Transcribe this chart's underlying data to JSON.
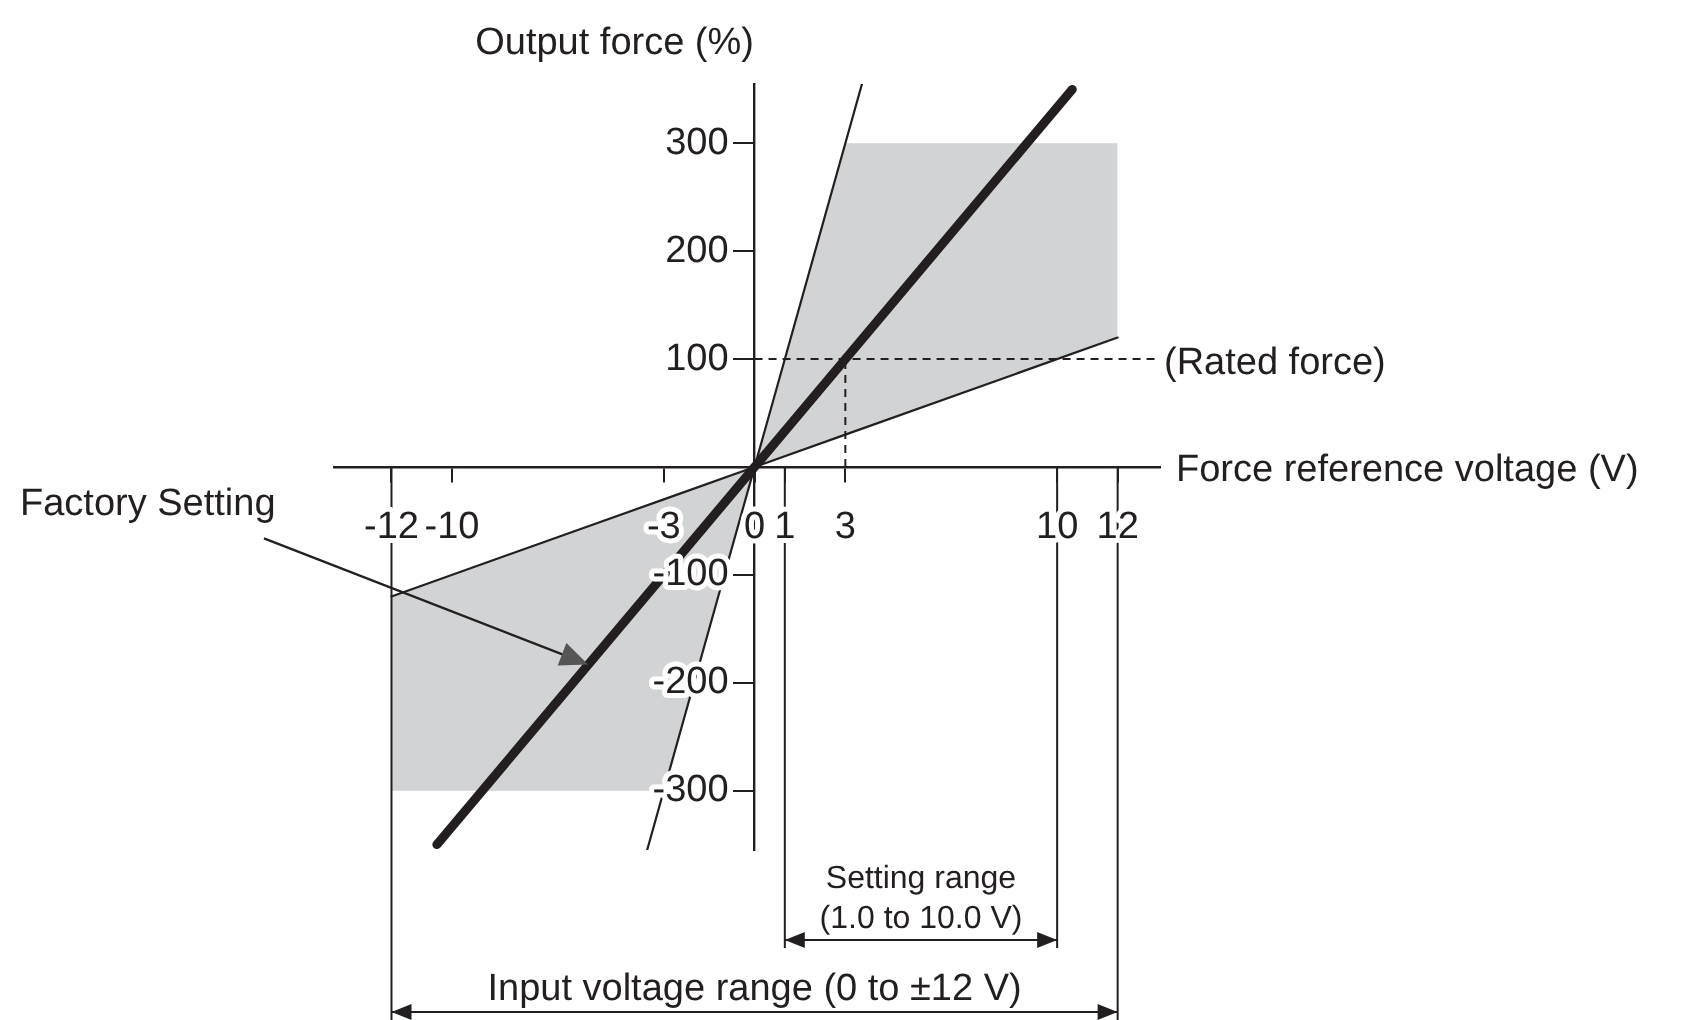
{
  "chart_data": {
    "type": "line",
    "xlabel": "Force reference voltage (V)",
    "ylabel": "Output force (%)",
    "xlim": [
      -13.9,
      13.4
    ],
    "ylim": [
      -355,
      355
    ],
    "xticks": [
      -12,
      -10,
      -3,
      0,
      1,
      3,
      10,
      12
    ],
    "yticks": [
      -300,
      -200,
      -100,
      100,
      200,
      300
    ],
    "grid": false,
    "legend": false,
    "marker": "none",
    "line_style": "solid",
    "series": [
      {
        "color": "#231f20",
        "x": [
          -12,
          -3,
          0,
          3,
          12
        ],
        "values": [
          -120,
          -30,
          0,
          30,
          120
        ],
        "lower": [
          -300,
          -300,
          0,
          30,
          120
        ],
        "upper": [
          -120,
          -30,
          0,
          300,
          300
        ]
      },
      {
        "color": "#231f20",
        "x": [
          -3.55,
          3.55
        ],
        "values": [
          -355,
          355
        ]
      },
      {
        "color": "#231f20",
        "x": [
          -10.5,
          10.5
        ],
        "values": [
          -350,
          350
        ]
      }
    ],
    "ref_lines": [
      {
        "axis": "y",
        "value": 100,
        "label": "(Rated force)",
        "line_style": "dashed",
        "color": "#231f20"
      },
      {
        "axis": "x",
        "value": 3,
        "line_style": "dashed",
        "color": "#231f20"
      },
      {
        "axis": "x",
        "value": 1,
        "line_style": "solid",
        "color": "#231f20"
      },
      {
        "axis": "x",
        "value": 10,
        "line_style": "solid",
        "color": "#231f20"
      },
      {
        "axis": "x",
        "value": -12,
        "line_style": "solid",
        "color": "#231f20"
      },
      {
        "axis": "x",
        "value": 12,
        "line_style": "solid",
        "color": "#231f20"
      }
    ],
    "annotations": [
      {
        "text": "Factory Setting",
        "x": -5.5,
        "y": -183
      },
      "Setting range\n(1.0 to 10.0 V)",
      "Input voltage range (0 to ±12 V)"
    ]
  }
}
